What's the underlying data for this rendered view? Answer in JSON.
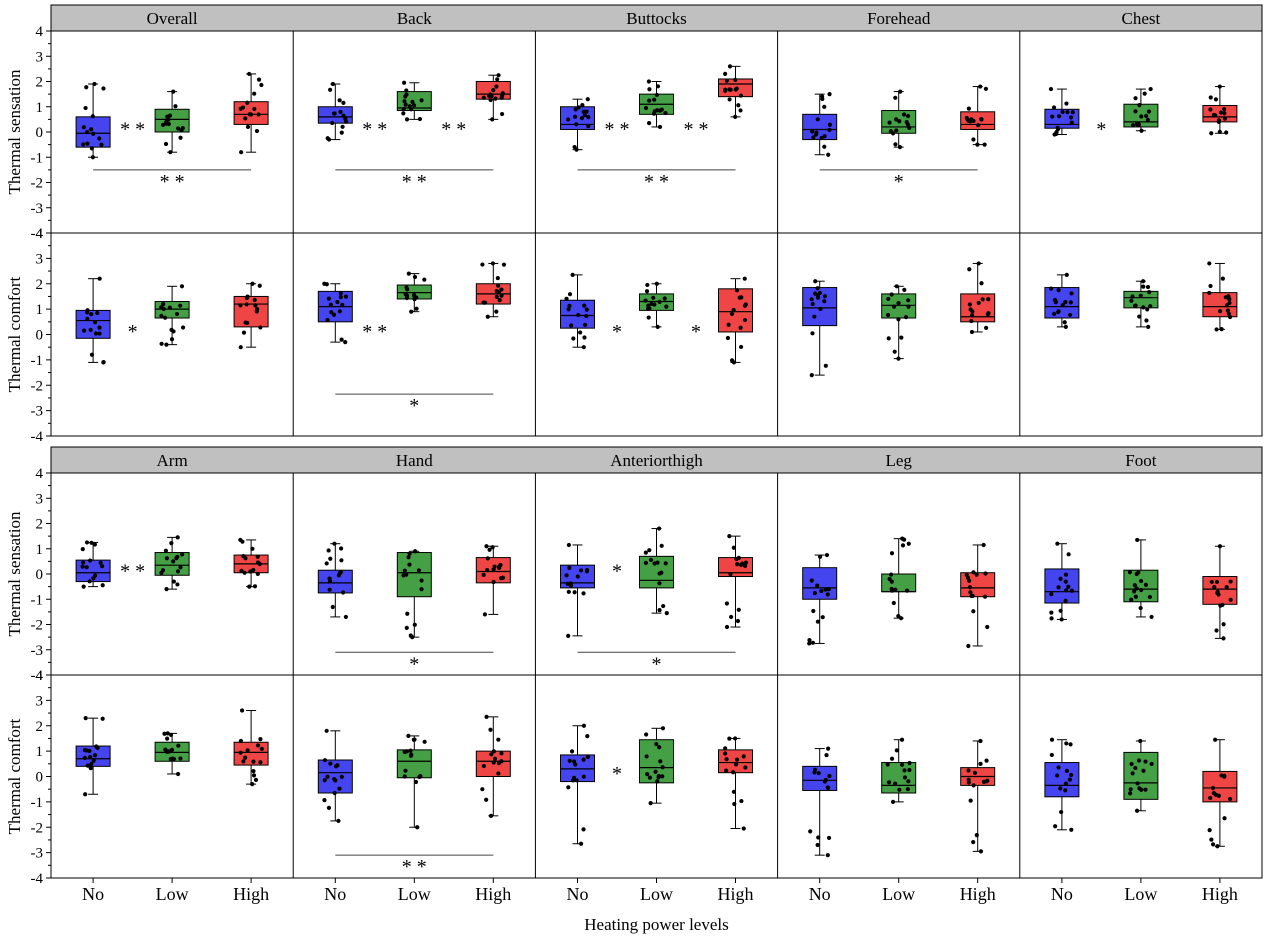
{
  "chart_data": {
    "type": "box",
    "x_axis_label": "Heating power levels",
    "categories": [
      "No",
      "Low",
      "High"
    ],
    "colors": {
      "No": "#4545f0",
      "Low": "#45a045",
      "High": "#f04545",
      "title_bar": "#c0c0c0"
    },
    "ylim": [
      -4,
      4
    ],
    "y_ticks": [
      -4,
      -3,
      -2,
      -1,
      0,
      1,
      2,
      3,
      4
    ],
    "row_labels": [
      "Thermal sensation",
      "Thermal comfort",
      "Thermal sensation",
      "Thermal comfort"
    ],
    "blocks": [
      {
        "body_parts": [
          "Overall",
          "Back",
          "Buttocks",
          "Forehead",
          "Chest"
        ],
        "sensation": [
          {
            "boxes": [
              [
                -1.0,
                -0.6,
                -0.05,
                0.6,
                1.9
              ],
              [
                -0.8,
                0.0,
                0.5,
                0.9,
                1.6
              ],
              [
                -0.8,
                0.3,
                0.7,
                1.2,
                2.3
              ]
            ],
            "sig": [
              {
                "between": [
                  0,
                  1
                ],
                "label": "* *",
                "level": "mid"
              },
              {
                "between": [
                  0,
                  2
                ],
                "label": "* *",
                "level": "line"
              }
            ]
          },
          {
            "boxes": [
              [
                -0.3,
                0.35,
                0.6,
                1.0,
                1.9
              ],
              [
                0.5,
                0.85,
                0.95,
                1.6,
                1.95
              ],
              [
                0.5,
                1.3,
                1.5,
                2.0,
                2.25
              ]
            ],
            "sig": [
              {
                "between": [
                  0,
                  1
                ],
                "label": "* *",
                "level": "mid"
              },
              {
                "between": [
                  1,
                  2
                ],
                "label": "* *",
                "level": "mid"
              },
              {
                "between": [
                  0,
                  2
                ],
                "label": "* *",
                "level": "line"
              }
            ]
          },
          {
            "boxes": [
              [
                -0.7,
                0.1,
                0.3,
                1.0,
                1.3
              ],
              [
                0.2,
                0.7,
                1.1,
                1.5,
                2.0
              ],
              [
                0.6,
                1.4,
                1.9,
                2.1,
                2.6
              ]
            ],
            "sig": [
              {
                "between": [
                  0,
                  1
                ],
                "label": "* *",
                "level": "mid"
              },
              {
                "between": [
                  1,
                  2
                ],
                "label": "* *",
                "level": "mid"
              },
              {
                "between": [
                  0,
                  2
                ],
                "label": "* *",
                "level": "line"
              }
            ]
          },
          {
            "boxes": [
              [
                -0.9,
                -0.3,
                0.1,
                0.7,
                1.5
              ],
              [
                -0.6,
                -0.05,
                0.2,
                0.85,
                1.6
              ],
              [
                -0.5,
                0.1,
                0.3,
                0.8,
                1.8
              ]
            ],
            "sig": [
              {
                "between": [
                  0,
                  2
                ],
                "label": "*",
                "level": "line"
              }
            ]
          },
          {
            "boxes": [
              [
                -0.1,
                0.15,
                0.3,
                0.9,
                1.7
              ],
              [
                0.05,
                0.2,
                0.4,
                1.1,
                1.7
              ],
              [
                -0.05,
                0.4,
                0.6,
                1.05,
                1.8
              ]
            ],
            "sig": [
              {
                "between": [
                  0,
                  1
                ],
                "label": "*",
                "level": "mid"
              }
            ]
          }
        ],
        "comfort": [
          {
            "boxes": [
              [
                -1.1,
                -0.15,
                0.55,
                0.95,
                2.2
              ],
              [
                -0.4,
                0.65,
                1.0,
                1.3,
                1.9
              ],
              [
                -0.5,
                0.3,
                1.2,
                1.5,
                2.0
              ]
            ],
            "sig": [
              {
                "between": [
                  0,
                  1
                ],
                "label": "*",
                "level": "mid"
              }
            ]
          },
          {
            "boxes": [
              [
                -0.3,
                0.5,
                1.1,
                1.7,
                2.0
              ],
              [
                0.9,
                1.4,
                1.65,
                1.95,
                2.4
              ],
              [
                0.7,
                1.2,
                1.6,
                2.0,
                2.8
              ]
            ],
            "sig": [
              {
                "between": [
                  0,
                  1
                ],
                "label": "* *",
                "level": "mid"
              },
              {
                "between": [
                  0,
                  2
                ],
                "label": "*",
                "level": "line"
              }
            ]
          },
          {
            "boxes": [
              [
                -0.5,
                0.25,
                0.75,
                1.35,
                2.35
              ],
              [
                0.3,
                0.95,
                1.3,
                1.6,
                2.0
              ],
              [
                -1.1,
                0.1,
                0.9,
                1.8,
                2.2
              ]
            ],
            "sig": [
              {
                "between": [
                  0,
                  1
                ],
                "label": "*",
                "level": "mid"
              },
              {
                "between": [
                  1,
                  2
                ],
                "label": "*",
                "level": "mid"
              }
            ]
          },
          {
            "boxes": [
              [
                -1.6,
                0.35,
                1.05,
                1.85,
                2.1
              ],
              [
                -0.95,
                0.65,
                1.15,
                1.6,
                1.9
              ],
              [
                0.1,
                0.5,
                0.7,
                1.6,
                2.8
              ]
            ],
            "sig": []
          },
          {
            "boxes": [
              [
                0.3,
                0.65,
                1.1,
                1.85,
                2.35
              ],
              [
                0.3,
                1.05,
                1.45,
                1.7,
                2.1
              ],
              [
                0.2,
                0.7,
                1.1,
                1.65,
                2.8
              ]
            ],
            "sig": []
          }
        ]
      },
      {
        "body_parts": [
          "Arm",
          "Hand",
          "Anteriorthigh",
          "Leg",
          "Foot"
        ],
        "sensation": [
          {
            "boxes": [
              [
                -0.5,
                -0.3,
                0.05,
                0.55,
                1.25
              ],
              [
                -0.6,
                -0.05,
                0.35,
                0.85,
                1.45
              ],
              [
                -0.5,
                0.05,
                0.4,
                0.75,
                1.35
              ]
            ],
            "sig": [
              {
                "between": [
                  0,
                  1
                ],
                "label": "* *",
                "level": "mid"
              }
            ]
          },
          {
            "boxes": [
              [
                -1.7,
                -0.75,
                -0.35,
                0.15,
                1.2
              ],
              [
                -2.5,
                -0.9,
                0.05,
                0.85,
                0.9
              ],
              [
                -1.6,
                -0.35,
                0.1,
                0.65,
                1.1
              ]
            ],
            "sig": [
              {
                "between": [
                  0,
                  2
                ],
                "label": "*",
                "level": "line"
              }
            ]
          },
          {
            "boxes": [
              [
                -2.45,
                -0.55,
                -0.35,
                0.35,
                1.15
              ],
              [
                -1.55,
                -0.55,
                -0.25,
                0.7,
                1.8
              ],
              [
                -2.1,
                -0.1,
                0.05,
                0.65,
                1.5
              ]
            ],
            "sig": [
              {
                "between": [
                  0,
                  1
                ],
                "label": "*",
                "level": "mid"
              },
              {
                "between": [
                  0,
                  2
                ],
                "label": "*",
                "level": "line"
              }
            ]
          },
          {
            "boxes": [
              [
                -2.75,
                -1.0,
                -0.55,
                0.25,
                0.75
              ],
              [
                -1.75,
                -0.7,
                -0.7,
                0.0,
                1.4
              ],
              [
                -2.85,
                -0.9,
                -0.55,
                0.05,
                1.15
              ]
            ],
            "sig": []
          },
          {
            "boxes": [
              [
                -1.8,
                -1.15,
                -0.7,
                0.2,
                1.2
              ],
              [
                -1.7,
                -1.1,
                -0.6,
                0.15,
                1.35
              ],
              [
                -2.55,
                -1.2,
                -0.6,
                -0.1,
                1.1
              ]
            ],
            "sig": []
          }
        ],
        "comfort": [
          {
            "boxes": [
              [
                -0.7,
                0.4,
                0.7,
                1.2,
                2.3
              ],
              [
                0.1,
                0.6,
                0.95,
                1.35,
                1.7
              ],
              [
                -0.3,
                0.45,
                0.95,
                1.35,
                2.6
              ]
            ],
            "sig": []
          },
          {
            "boxes": [
              [
                -1.75,
                -0.65,
                0.15,
                0.65,
                1.8
              ],
              [
                -2.0,
                -0.05,
                0.6,
                1.05,
                1.6
              ],
              [
                -1.55,
                0.0,
                0.6,
                1.0,
                2.35
              ]
            ],
            "sig": [
              {
                "between": [
                  0,
                  2
                ],
                "label": "* *",
                "level": "line"
              }
            ]
          },
          {
            "boxes": [
              [
                -2.65,
                -0.2,
                0.3,
                0.85,
                2.0
              ],
              [
                -1.05,
                -0.25,
                0.35,
                1.45,
                1.9
              ],
              [
                -2.05,
                0.15,
                0.55,
                1.05,
                1.5
              ]
            ],
            "sig": [
              {
                "between": [
                  0,
                  1
                ],
                "label": "*",
                "level": "mid"
              }
            ]
          },
          {
            "boxes": [
              [
                -3.1,
                -0.55,
                -0.15,
                0.4,
                1.1
              ],
              [
                -1.0,
                -0.65,
                -0.35,
                0.55,
                1.45
              ],
              [
                -2.95,
                -0.35,
                0.0,
                0.35,
                1.4
              ]
            ],
            "sig": []
          },
          {
            "boxes": [
              [
                -2.1,
                -0.8,
                -0.35,
                0.55,
                1.45
              ],
              [
                -1.35,
                -0.9,
                -0.25,
                0.95,
                1.4
              ],
              [
                -2.75,
                -1.0,
                -0.45,
                0.2,
                1.45
              ]
            ],
            "sig": []
          }
        ]
      }
    ]
  }
}
